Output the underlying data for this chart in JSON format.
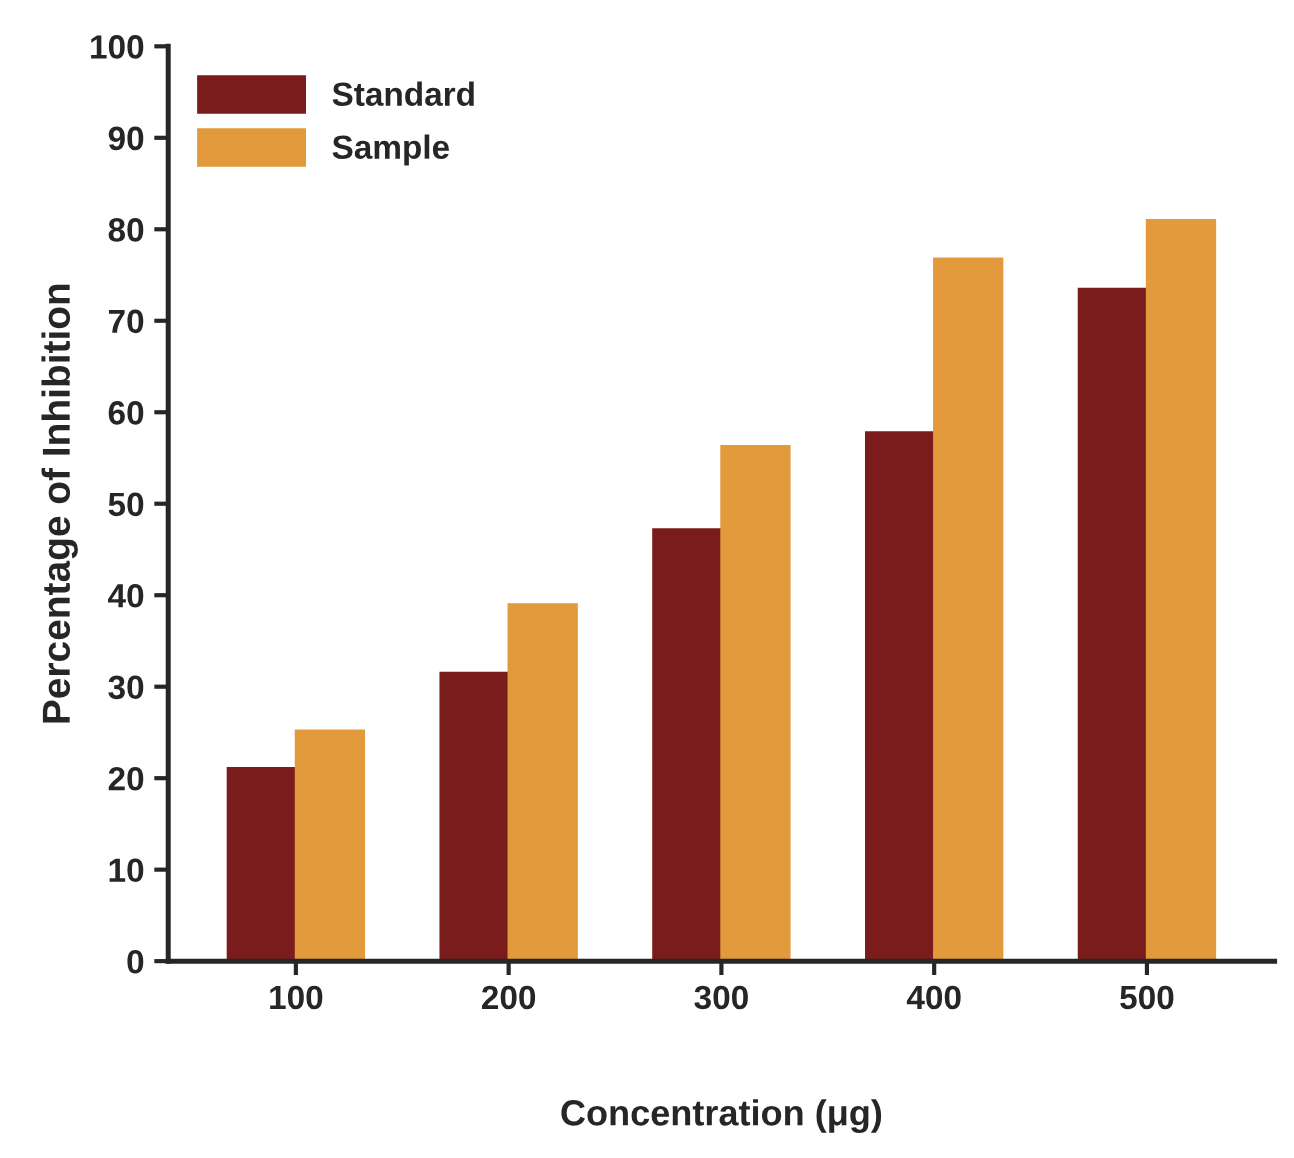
{
  "chart_data": {
    "type": "bar",
    "xlabel": "Concentration (μg)",
    "ylabel": "Percentage of Inhibition",
    "categories": [
      "100",
      "200",
      "300",
      "400",
      "500"
    ],
    "series": [
      {
        "name": "Standard",
        "color": "#7a1c1c",
        "values": [
          21.1,
          31.5,
          47.2,
          57.8,
          73.5
        ]
      },
      {
        "name": "Sample",
        "color": "#e39a3c",
        "values": [
          25.2,
          39.0,
          56.3,
          76.8,
          81.0
        ]
      }
    ],
    "ylim": [
      0,
      100
    ],
    "yticks": [
      0,
      10,
      20,
      30,
      40,
      50,
      60,
      70,
      80,
      90,
      100
    ],
    "grid": false,
    "legend": "top left"
  }
}
